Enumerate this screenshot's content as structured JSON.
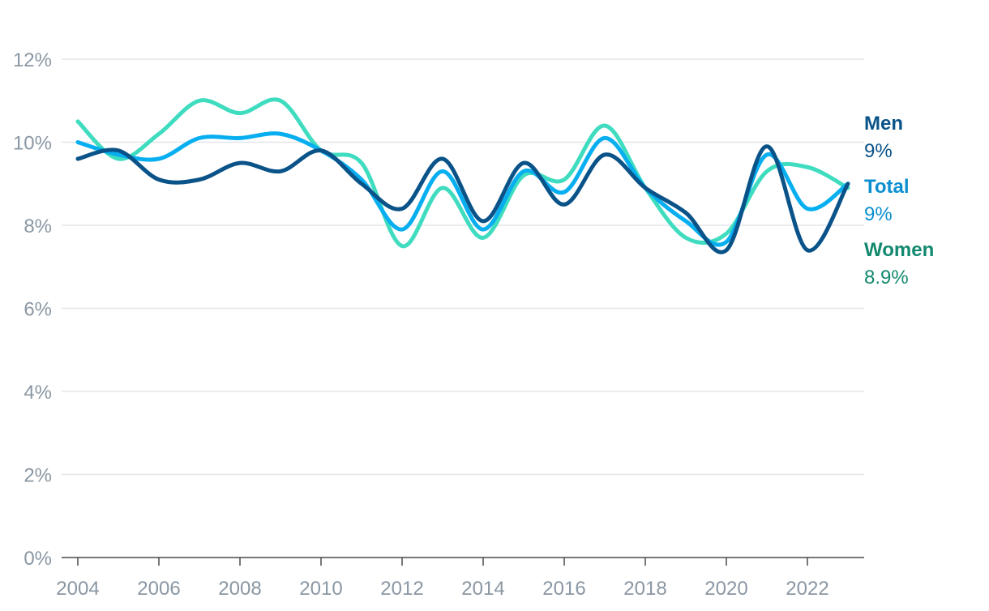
{
  "chart_data": {
    "type": "line",
    "x": [
      2004,
      2005,
      2006,
      2007,
      2008,
      2009,
      2010,
      2011,
      2012,
      2013,
      2014,
      2015,
      2016,
      2017,
      2018,
      2019,
      2020,
      2021,
      2022,
      2023
    ],
    "xticks": [
      2004,
      2006,
      2008,
      2010,
      2012,
      2014,
      2016,
      2018,
      2020,
      2022
    ],
    "xtick_labels": [
      "2004",
      "2006",
      "2008",
      "2010",
      "2012",
      "2014",
      "2016",
      "2018",
      "2020",
      "2022"
    ],
    "yticks": [
      0,
      2,
      4,
      6,
      8,
      10,
      12
    ],
    "ytick_labels": [
      "0%",
      "2%",
      "4%",
      "6%",
      "8%",
      "10%",
      "12%"
    ],
    "xlim": [
      2004,
      2023
    ],
    "ylim": [
      0,
      12
    ],
    "grid": true,
    "title": "",
    "xlabel": "",
    "ylabel": "",
    "legend": "right-end labels",
    "series": [
      {
        "name": "Women",
        "end_label": "8.9%",
        "color": "#3fdcc0",
        "label_color": "#13896f",
        "values": [
          10.5,
          9.6,
          10.2,
          11.0,
          10.7,
          11.0,
          9.8,
          9.5,
          7.5,
          8.9,
          7.7,
          9.2,
          9.1,
          10.4,
          8.9,
          7.7,
          7.8,
          9.3,
          9.4,
          8.9
        ]
      },
      {
        "name": "Total",
        "end_label": "9%",
        "color": "#07aef0",
        "label_color": "#0b8fd0",
        "values": [
          10.0,
          9.7,
          9.6,
          10.1,
          10.1,
          10.2,
          9.8,
          9.1,
          7.9,
          9.3,
          7.9,
          9.3,
          8.8,
          10.1,
          8.9,
          8.1,
          7.6,
          9.7,
          8.4,
          9.0
        ]
      },
      {
        "name": "Men",
        "end_label": "9%",
        "color": "#0a5389",
        "label_color": "#0a5389",
        "values": [
          9.6,
          9.8,
          9.1,
          9.1,
          9.5,
          9.3,
          9.8,
          9.0,
          8.4,
          9.6,
          8.1,
          9.5,
          8.5,
          9.7,
          8.9,
          8.3,
          7.4,
          9.9,
          7.4,
          9.0
        ]
      }
    ]
  }
}
